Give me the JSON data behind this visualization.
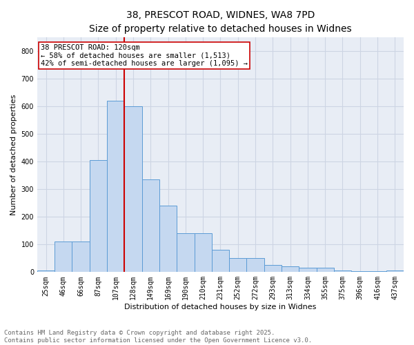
{
  "title1": "38, PRESCOT ROAD, WIDNES, WA8 7PD",
  "title2": "Size of property relative to detached houses in Widnes",
  "xlabel": "Distribution of detached houses by size in Widnes",
  "ylabel": "Number of detached properties",
  "bar_labels": [
    "25sqm",
    "46sqm",
    "66sqm",
    "87sqm",
    "107sqm",
    "128sqm",
    "149sqm",
    "169sqm",
    "190sqm",
    "210sqm",
    "231sqm",
    "252sqm",
    "272sqm",
    "293sqm",
    "313sqm",
    "334sqm",
    "355sqm",
    "375sqm",
    "396sqm",
    "416sqm",
    "437sqm"
  ],
  "bar_values": [
    5,
    110,
    110,
    405,
    620,
    600,
    335,
    240,
    140,
    140,
    80,
    50,
    50,
    25,
    20,
    17,
    17,
    5,
    3,
    3,
    5
  ],
  "bar_color": "#c5d8f0",
  "bar_edge_color": "#5b9bd5",
  "vline_x_idx": 4.5,
  "vline_color": "#cc0000",
  "annotation_text": "38 PRESCOT ROAD: 120sqm\n← 58% of detached houses are smaller (1,513)\n42% of semi-detached houses are larger (1,095) →",
  "annotation_box_facecolor": "#ffffff",
  "annotation_box_edgecolor": "#cc0000",
  "ylim": [
    0,
    850
  ],
  "yticks": [
    0,
    100,
    200,
    300,
    400,
    500,
    600,
    700,
    800
  ],
  "grid_color": "#cdd5e3",
  "bg_color": "#e8edf5",
  "footer_line1": "Contains HM Land Registry data © Crown copyright and database right 2025.",
  "footer_line2": "Contains public sector information licensed under the Open Government Licence v3.0.",
  "title_fontsize": 10,
  "subtitle_fontsize": 9,
  "axis_label_fontsize": 8,
  "tick_fontsize": 7,
  "annotation_fontsize": 7.5,
  "footer_fontsize": 6.5
}
